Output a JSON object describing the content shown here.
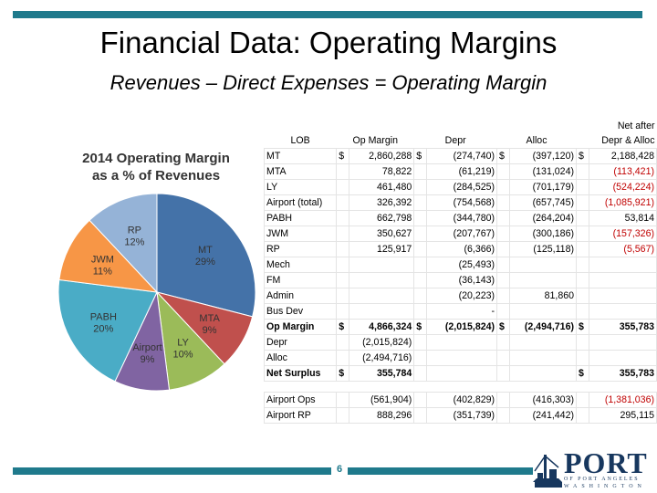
{
  "slide": {
    "title": "Financial Data: Operating Margins",
    "subtitle": "Revenues – Direct Expenses = Operating Margin",
    "page_number": "6"
  },
  "logo": {
    "name": "PORT",
    "line1": "OF PORT ANGELES",
    "line2": "WASHINGTON"
  },
  "chart_data": {
    "type": "pie",
    "title": "2014 Operating Margin as a % of Revenues",
    "title_line1": "2014 Operating Margin",
    "title_line2": "as a % of Revenues",
    "slices": [
      {
        "name": "MT",
        "value": 29,
        "label": "29%",
        "color": "#4472a8"
      },
      {
        "name": "MTA",
        "value": 9,
        "label": "9%",
        "color": "#c0504d"
      },
      {
        "name": "LY",
        "value": 10,
        "label": "10%",
        "color": "#9bbb59"
      },
      {
        "name": "Airport",
        "value": 9,
        "label": "9%",
        "color": "#8064a2"
      },
      {
        "name": "PABH",
        "value": 20,
        "label": "20%",
        "color": "#4aacc6"
      },
      {
        "name": "JWM",
        "value": 11,
        "label": "11%",
        "color": "#f79646"
      },
      {
        "name": "RP",
        "value": 12,
        "label": "12%",
        "color": "#95b3d7"
      }
    ]
  },
  "table": {
    "header_top": [
      "",
      "",
      "",
      "",
      "",
      "",
      "",
      "Net after"
    ],
    "headers": [
      "LOB",
      "Op Margin",
      "",
      "Depr",
      "",
      "Alloc",
      "",
      "Depr & Alloc"
    ],
    "rows": [
      {
        "cells": [
          "MT",
          "$",
          "2,860,288",
          "$",
          "(274,740)",
          "$",
          "(397,120)",
          "$",
          "2,188,428"
        ],
        "style": "",
        "red": false
      },
      {
        "cells": [
          "MTA",
          "",
          "78,822",
          "",
          "(61,219)",
          "",
          "(131,024)",
          "",
          "(113,421)"
        ],
        "style": "",
        "red": true
      },
      {
        "cells": [
          "LY",
          "",
          "461,480",
          "",
          "(284,525)",
          "",
          "(701,179)",
          "",
          "(524,224)"
        ],
        "style": "",
        "red": true
      },
      {
        "cells": [
          "Airport (total)",
          "",
          "326,392",
          "",
          "(754,568)",
          "",
          "(657,745)",
          "",
          "(1,085,921)"
        ],
        "style": "",
        "red": true
      },
      {
        "cells": [
          "PABH",
          "",
          "662,798",
          "",
          "(344,780)",
          "",
          "(264,204)",
          "",
          "53,814"
        ],
        "style": "",
        "red": false
      },
      {
        "cells": [
          "JWM",
          "",
          "350,627",
          "",
          "(207,767)",
          "",
          "(300,186)",
          "",
          "(157,326)"
        ],
        "style": "",
        "red": true
      },
      {
        "cells": [
          "RP",
          "",
          "125,917",
          "",
          "(6,366)",
          "",
          "(125,118)",
          "",
          "(5,567)"
        ],
        "style": "",
        "red": true
      },
      {
        "cells": [
          "Mech",
          "",
          "",
          "",
          "(25,493)",
          "",
          "",
          "",
          ""
        ],
        "style": "",
        "red": false
      },
      {
        "cells": [
          "FM",
          "",
          "",
          "",
          "(36,143)",
          "",
          "",
          "",
          ""
        ],
        "style": "",
        "red": false
      },
      {
        "cells": [
          "Admin",
          "",
          "",
          "",
          "(20,223)",
          "",
          "81,860",
          "",
          ""
        ],
        "style": "",
        "red": false
      },
      {
        "cells": [
          "Bus Dev",
          "",
          "",
          "",
          "-",
          "",
          "",
          "",
          ""
        ],
        "style": "",
        "red": false
      },
      {
        "cells": [
          "Op Margin",
          "$",
          "4,866,324",
          "$",
          "(2,015,824)",
          "$",
          "(2,494,716)",
          "$",
          "355,783"
        ],
        "style": "bold",
        "red": false
      },
      {
        "cells": [
          "Depr",
          "",
          "(2,015,824)",
          "",
          "",
          "",
          "",
          "",
          ""
        ],
        "style": "",
        "red": false
      },
      {
        "cells": [
          "Alloc",
          "",
          "(2,494,716)",
          "",
          "",
          "",
          "",
          "",
          ""
        ],
        "style": "",
        "red": false
      },
      {
        "cells": [
          "Net Surplus",
          "$",
          "355,784",
          "",
          "",
          "",
          "",
          "$",
          "355,783"
        ],
        "style": "bold",
        "red": false
      }
    ],
    "extra_rows": [
      {
        "cells": [
          "Airport Ops",
          "",
          "(561,904)",
          "",
          "(402,829)",
          "",
          "(416,303)",
          "",
          "(1,381,036)"
        ],
        "red": true
      },
      {
        "cells": [
          "Airport RP",
          "",
          "888,296",
          "",
          "(351,739)",
          "",
          "(241,442)",
          "",
          "295,115"
        ],
        "red": false
      }
    ]
  }
}
